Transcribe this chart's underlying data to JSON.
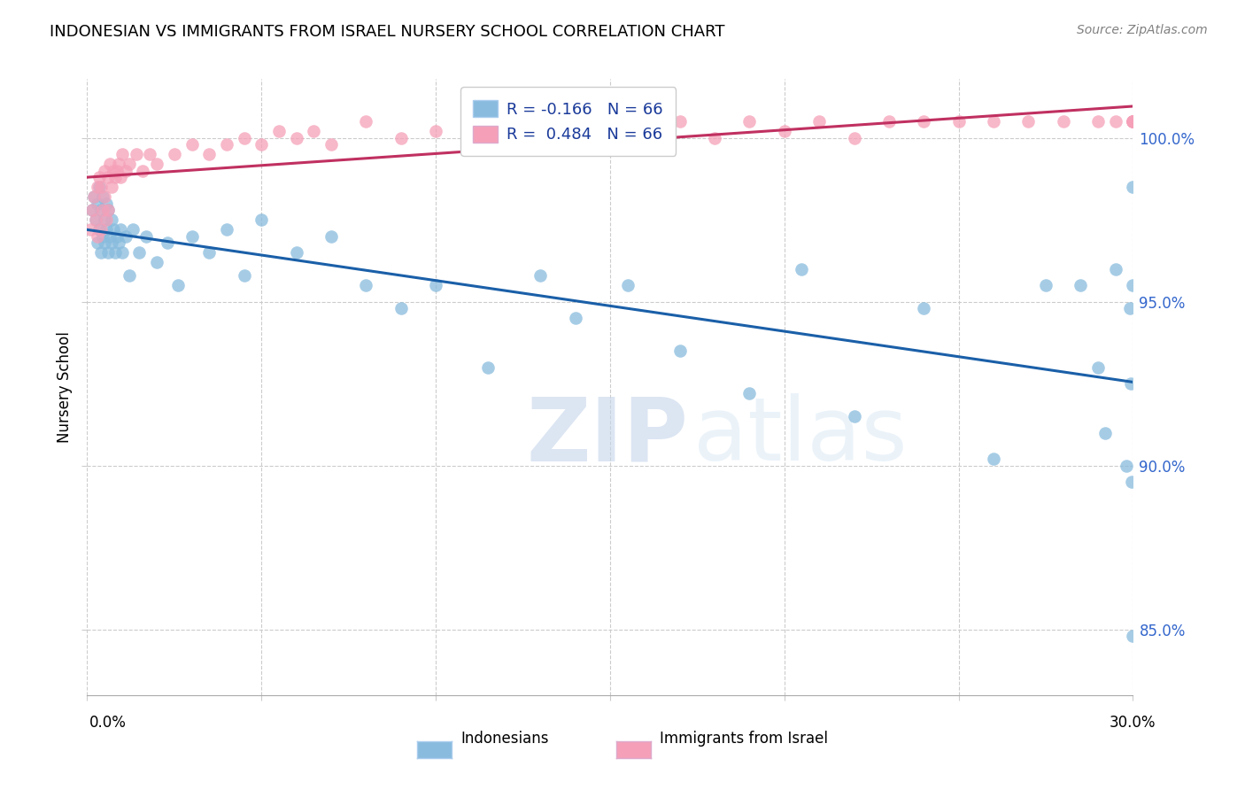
{
  "title": "INDONESIAN VS IMMIGRANTS FROM ISRAEL NURSERY SCHOOL CORRELATION CHART",
  "source": "Source: ZipAtlas.com",
  "ylabel": "Nursery School",
  "xlim": [
    0.0,
    30.0
  ],
  "ylim": [
    83.0,
    101.8
  ],
  "yticks": [
    85.0,
    90.0,
    95.0,
    100.0
  ],
  "ytick_labels": [
    "85.0%",
    "90.0%",
    "95.0%",
    "100.0%"
  ],
  "legend1_r": "-0.166",
  "legend2_r": "0.484",
  "legend_n": "66",
  "blue_color": "#88bbdd",
  "pink_color": "#f5a0b8",
  "blue_line_color": "#1a5fa8",
  "pink_line_color": "#c03060",
  "watermark_zip": "ZIP",
  "watermark_atlas": "atlas",
  "indonesian_x": [
    0.15,
    0.2,
    0.25,
    0.3,
    0.3,
    0.35,
    0.35,
    0.4,
    0.4,
    0.45,
    0.45,
    0.5,
    0.5,
    0.55,
    0.55,
    0.6,
    0.6,
    0.65,
    0.7,
    0.7,
    0.75,
    0.8,
    0.85,
    0.9,
    0.95,
    1.0,
    1.1,
    1.2,
    1.3,
    1.5,
    1.7,
    2.0,
    2.3,
    2.6,
    3.0,
    3.5,
    4.0,
    4.5,
    5.0,
    6.0,
    7.0,
    8.0,
    9.0,
    10.0,
    11.5,
    13.0,
    14.0,
    15.5,
    17.0,
    19.0,
    20.5,
    22.0,
    24.0,
    26.0,
    27.5,
    28.5,
    29.0,
    29.2,
    29.5,
    29.8,
    29.9,
    29.95,
    29.97,
    29.98,
    29.99,
    30.0
  ],
  "indonesian_y": [
    97.8,
    98.2,
    97.5,
    96.8,
    98.0,
    97.2,
    98.5,
    96.5,
    97.8,
    97.0,
    98.2,
    96.8,
    97.5,
    97.2,
    98.0,
    96.5,
    97.8,
    97.0,
    96.8,
    97.5,
    97.2,
    96.5,
    97.0,
    96.8,
    97.2,
    96.5,
    97.0,
    95.8,
    97.2,
    96.5,
    97.0,
    96.2,
    96.8,
    95.5,
    97.0,
    96.5,
    97.2,
    95.8,
    97.5,
    96.5,
    97.0,
    95.5,
    94.8,
    95.5,
    93.0,
    95.8,
    94.5,
    95.5,
    93.5,
    92.2,
    96.0,
    91.5,
    94.8,
    90.2,
    95.5,
    95.5,
    93.0,
    91.0,
    96.0,
    90.0,
    94.8,
    92.5,
    89.5,
    98.5,
    84.8,
    95.5
  ],
  "israel_x": [
    0.1,
    0.15,
    0.2,
    0.25,
    0.3,
    0.3,
    0.35,
    0.4,
    0.4,
    0.45,
    0.5,
    0.5,
    0.55,
    0.6,
    0.6,
    0.65,
    0.7,
    0.75,
    0.8,
    0.85,
    0.9,
    0.95,
    1.0,
    1.1,
    1.2,
    1.4,
    1.6,
    1.8,
    2.0,
    2.5,
    3.0,
    3.5,
    4.0,
    4.5,
    5.0,
    5.5,
    6.0,
    6.5,
    7.0,
    8.0,
    9.0,
    10.0,
    11.0,
    12.0,
    13.0,
    14.0,
    15.0,
    16.0,
    17.0,
    18.0,
    19.0,
    20.0,
    21.0,
    22.0,
    23.0,
    24.0,
    25.0,
    26.0,
    27.0,
    28.0,
    29.0,
    29.5,
    30.0,
    30.0,
    30.0,
    30.0
  ],
  "israel_y": [
    97.2,
    97.8,
    98.2,
    97.5,
    98.5,
    97.0,
    98.8,
    97.2,
    98.5,
    97.8,
    98.2,
    99.0,
    97.5,
    98.8,
    97.8,
    99.2,
    98.5,
    99.0,
    98.8,
    99.0,
    99.2,
    98.8,
    99.5,
    99.0,
    99.2,
    99.5,
    99.0,
    99.5,
    99.2,
    99.5,
    99.8,
    99.5,
    99.8,
    100.0,
    99.8,
    100.2,
    100.0,
    100.2,
    99.8,
    100.5,
    100.0,
    100.2,
    100.5,
    100.2,
    100.5,
    100.0,
    100.5,
    100.2,
    100.5,
    100.0,
    100.5,
    100.2,
    100.5,
    100.0,
    100.5,
    100.5,
    100.5,
    100.5,
    100.5,
    100.5,
    100.5,
    100.5,
    100.5,
    100.5,
    100.5,
    100.5
  ]
}
